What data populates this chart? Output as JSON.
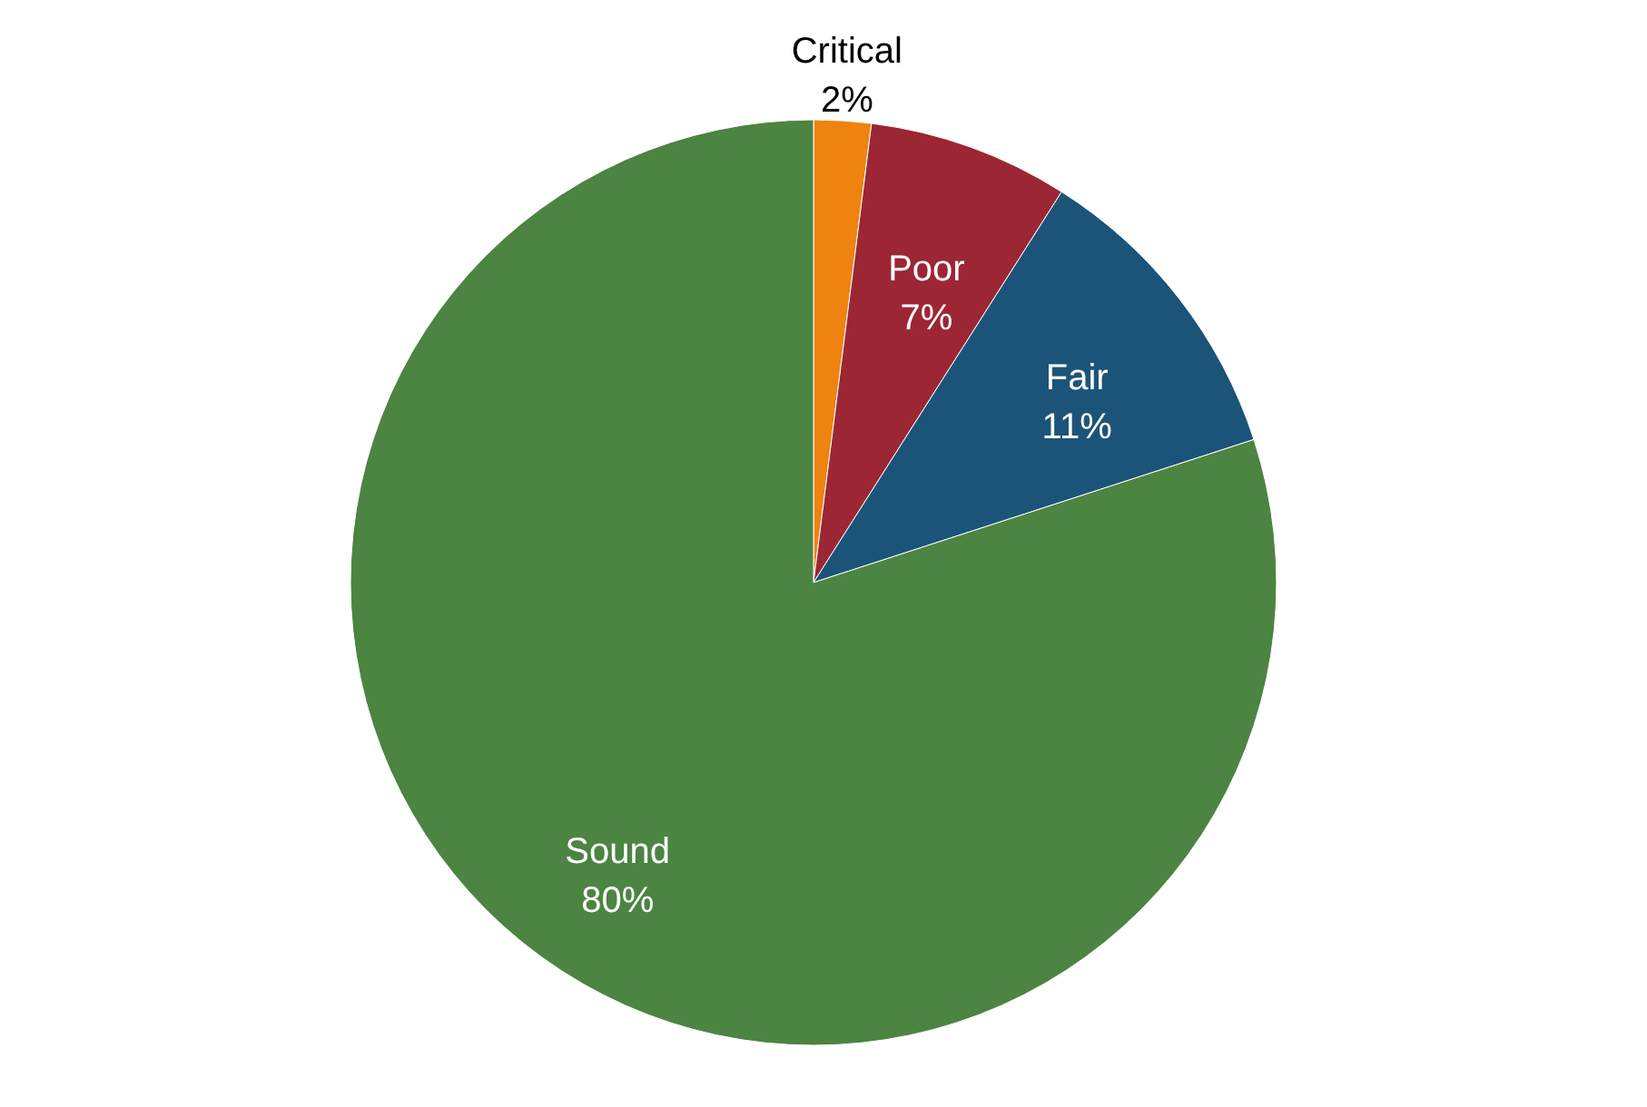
{
  "chart_data": {
    "type": "pie",
    "categories": [
      "Critical",
      "Poor",
      "Fair",
      "Sound"
    ],
    "values": [
      2,
      7,
      11,
      80
    ],
    "value_labels": [
      "2%",
      "7%",
      "11%",
      "80%"
    ],
    "colors": [
      "#ee8310",
      "#9c2634",
      "#1c5479",
      "#4c8441"
    ],
    "legend": false
  }
}
